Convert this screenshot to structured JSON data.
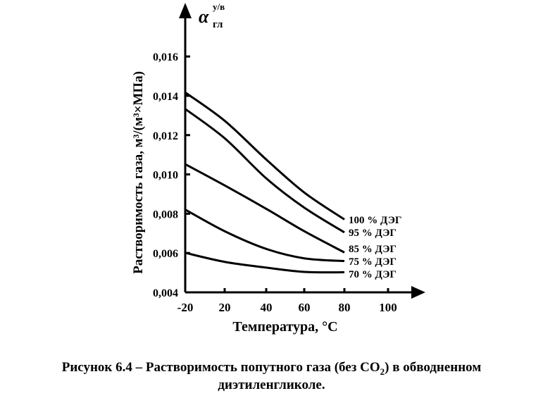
{
  "chart_data": {
    "type": "line",
    "title": "",
    "xlabel": "Температура, °C",
    "xlabel_main": "Температура, ",
    "xlabel_unit_sup": "0",
    "xlabel_unit": "C",
    "ylabel": "Растворимость газа, м³/(м³×МПа)",
    "ylabel_symbol": "α",
    "ylabel_symbol_sub": "гл",
    "ylabel_symbol_sup": "у/в",
    "x_ticks": [
      -20,
      20,
      40,
      60,
      80,
      100
    ],
    "x_tick_labels": [
      "-20",
      "20",
      "40",
      "60",
      "80",
      "100"
    ],
    "y_ticks": [
      0.004,
      0.006,
      0.008,
      0.01,
      0.012,
      0.014,
      0.016
    ],
    "y_tick_labels": [
      "0,004",
      "0,006",
      "0,008",
      "0,010",
      "0,012",
      "0,014",
      "0,016"
    ],
    "ylim": [
      0.004,
      0.017
    ],
    "grid": false,
    "x": [
      -20,
      20,
      40,
      60,
      80
    ],
    "series": [
      {
        "name": "100 % ДЭГ",
        "values": [
          0.01417,
          0.01273,
          0.01076,
          0.00908,
          0.00771
        ]
      },
      {
        "name": "95 % ДЭГ",
        "values": [
          0.01333,
          0.01184,
          0.0098,
          0.00831,
          0.00705
        ]
      },
      {
        "name": "85 % ДЭГ",
        "values": [
          0.01052,
          0.00944,
          0.00825,
          0.00711,
          0.00603
        ]
      },
      {
        "name": "75 % ДЭГ",
        "values": [
          0.00821,
          0.00711,
          0.00621,
          0.00573,
          0.00559
        ]
      },
      {
        "name": "70 % ДЭГ",
        "values": [
          0.00601,
          0.00555,
          0.00526,
          0.00504,
          0.00502
        ]
      }
    ],
    "line_color": "#000000"
  },
  "caption": {
    "line1_a": "Рисунок 6.4 – Растворимость попутного газа (без CO",
    "line1_sub": "2",
    "line1_b": ") в обводненном",
    "line2": "диэтиленгликоле."
  }
}
